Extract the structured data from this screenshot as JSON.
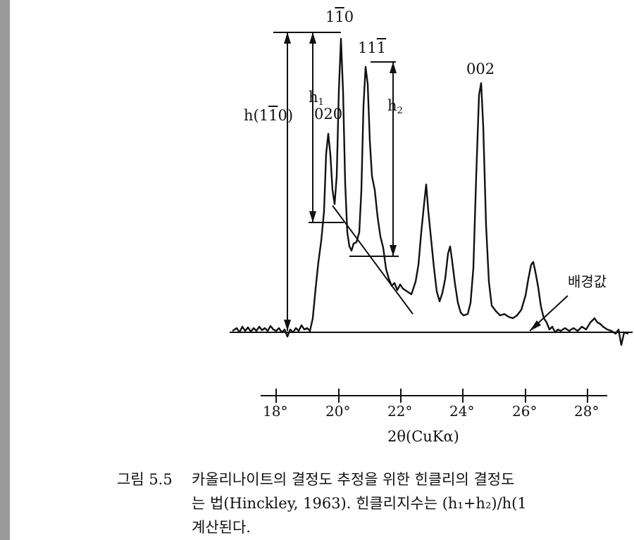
{
  "figure": {
    "peak_labels": {
      "p110bar": "110",
      "p111bar": "111",
      "p002": "002",
      "p020": "020"
    },
    "measure_labels": {
      "h110": "h(110)",
      "h1": "h",
      "h1_sub": "1",
      "h2": "h",
      "h2_sub": "2"
    },
    "background_label": "배경값",
    "xaxis": {
      "ticks": [
        "18°",
        "20°",
        "22°",
        "24°",
        "26°",
        "28°"
      ],
      "label": "2θ(CuKα)"
    }
  },
  "caption": {
    "number": "그림 5.5",
    "line1": "카올리나이트의 결정도 추정을 위한 힌클리의 결정도",
    "line2": "는 법(Hinckley, 1963). 힌클리지수는 (h₁+h₂)/h(1",
    "line3": "계산된다."
  }
}
